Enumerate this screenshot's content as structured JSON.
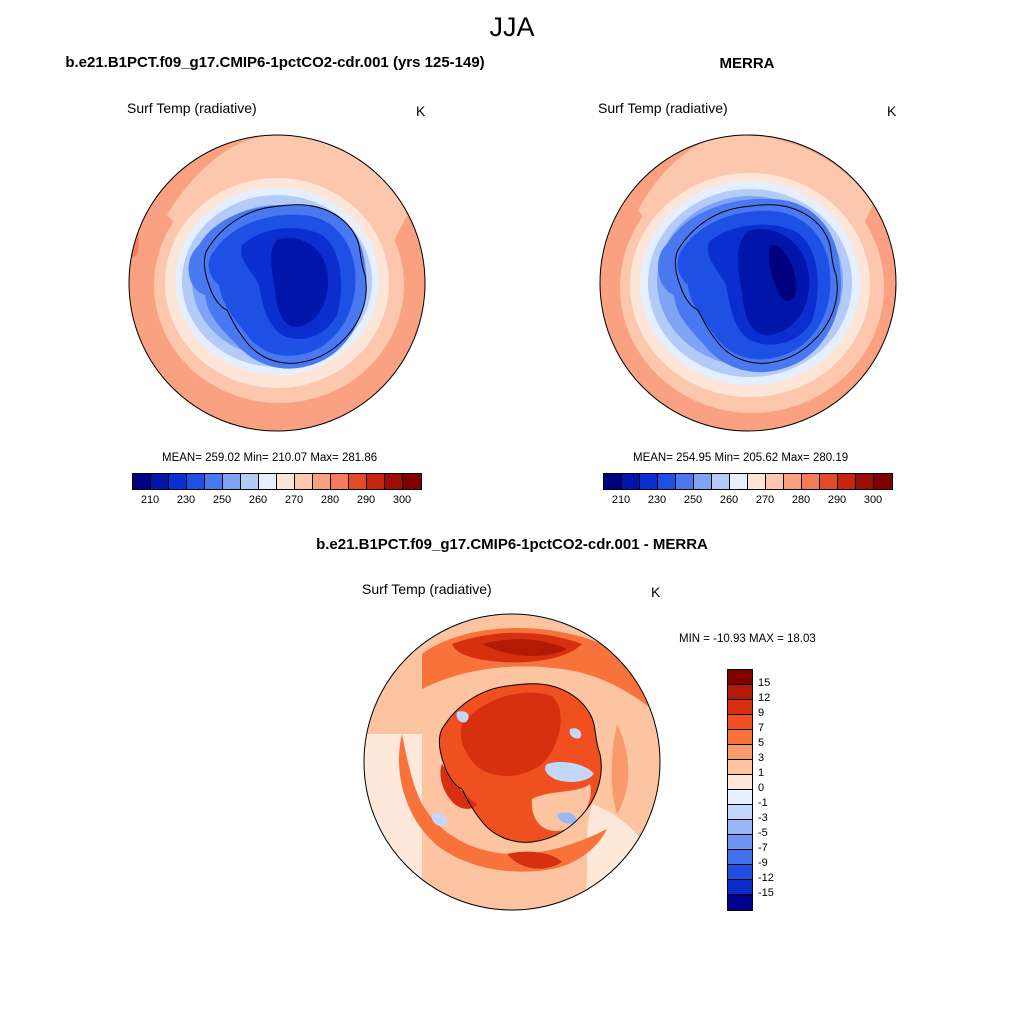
{
  "figure": {
    "season": "JJA"
  },
  "panels": [
    {
      "title": "b.e21.B1PCT.f09_g17.CMIP6-1pctCO2-cdr.001 (yrs 125-149)",
      "variable": "Surf Temp (radiative)",
      "units": "K",
      "stats": "MEAN= 259.02  Min= 210.07  Max= 281.86"
    },
    {
      "title": "MERRA",
      "variable": "Surf Temp (radiative)",
      "units": "K",
      "stats": "MEAN= 254.95  Min= 205.62  Max= 280.19"
    }
  ],
  "diff_panel": {
    "title": "b.e21.B1PCT.f09_g17.CMIP6-1pctCO2-cdr.001 - MERRA",
    "variable": "Surf Temp (radiative)",
    "units": "K",
    "stats": "MIN = -10.93 MAX =  18.03"
  },
  "abs_colorbar": {
    "colors": [
      "#000080",
      "#0015a9",
      "#0a2ed0",
      "#1e50e6",
      "#4a78f0",
      "#7fa3f5",
      "#b3cbf9",
      "#e6efff",
      "#fde6d7",
      "#fcc7ad",
      "#f9a180",
      "#f57b5a",
      "#e44a2a",
      "#c62310",
      "#9c0d05",
      "#800000"
    ],
    "tick_labels": [
      "210",
      "230",
      "250",
      "260",
      "270",
      "280",
      "290",
      "300"
    ]
  },
  "diff_colorbar": {
    "colors": [
      "#800000",
      "#b31a05",
      "#d73010",
      "#f0501f",
      "#f8723c",
      "#fa9a6c",
      "#fcc4a0",
      "#fde8da",
      "#e8f0ff",
      "#c3d6fb",
      "#99b8f7",
      "#6e95f1",
      "#4470ea",
      "#1f4fe0",
      "#0a2cc4",
      "#00008c"
    ],
    "tick_labels": [
      "15",
      "12",
      "9",
      "7",
      "5",
      "3",
      "1",
      "0",
      "-1",
      "-3",
      "-5",
      "-7",
      "-9",
      "-12",
      "-15"
    ]
  }
}
